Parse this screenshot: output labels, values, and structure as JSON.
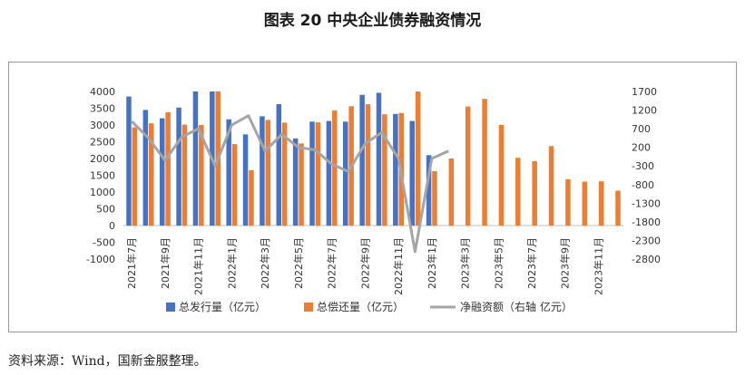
{
  "title": "图表 20  中央企业债券融资情况",
  "source": "资料来源：Wind，国新金服整理。",
  "colors": {
    "issue": "#4472C4",
    "repay": "#ED7D31",
    "net": "#A5A5A5"
  },
  "chart_data": {
    "type": "bar",
    "categories": [
      "2021年7月",
      "2021年8月",
      "2021年9月",
      "2021年10月",
      "2021年11月",
      "2021年12月",
      "2022年1月",
      "2022年2月",
      "2022年3月",
      "2022年4月",
      "2022年5月",
      "2022年6月",
      "2022年7月",
      "2022年8月",
      "2022年9月",
      "2022年10月",
      "2022年11月",
      "2022年12月",
      "2023年1月",
      "2023年2月",
      "2023年3月",
      "2023年4月",
      "2023年5月",
      "2023年6月",
      "2023年7月",
      "2023年8月",
      "2023年9月",
      "2023年10月",
      "2023年11月",
      "2023年12月"
    ],
    "x_tick_labels": [
      "2021年7月",
      "2021年9月",
      "2021年11月",
      "2022年1月",
      "2022年3月",
      "2022年5月",
      "2022年7月",
      "2022年9月",
      "2022年11月",
      "2023年1月",
      "2023年3月",
      "2023年5月",
      "2023年7月",
      "2023年9月",
      "2023年11月"
    ],
    "series": [
      {
        "name": "总发行量（亿元）",
        "axis": "left",
        "type": "bar",
        "values": [
          3850,
          3450,
          3200,
          3520,
          4000,
          4000,
          3170,
          2720,
          3260,
          3620,
          2600,
          3100,
          3120,
          3100,
          3900,
          3960,
          3330,
          3120,
          2100,
          null,
          null,
          null,
          null,
          null,
          null,
          null,
          null,
          null,
          null,
          null
        ]
      },
      {
        "name": "总偿还量（亿元）",
        "axis": "left",
        "type": "bar",
        "values": [
          2930,
          3050,
          3380,
          3010,
          3000,
          4000,
          2430,
          1650,
          3150,
          3070,
          2450,
          3080,
          3430,
          3560,
          3620,
          3320,
          3360,
          4000,
          1620,
          2000,
          3550,
          3780,
          3000,
          2020,
          1920,
          2370,
          1380,
          1310,
          1320,
          1040
        ]
      },
      {
        "name": "净融资额（右轴 亿元）",
        "axis": "right",
        "type": "line",
        "values": [
          900,
          450,
          -150,
          480,
          700,
          -300,
          800,
          1050,
          100,
          550,
          200,
          130,
          -250,
          -450,
          300,
          600,
          -100,
          -2600,
          -100,
          100,
          null,
          null,
          null,
          null,
          null,
          null,
          null,
          null,
          null,
          null
        ]
      }
    ],
    "y_left": {
      "lim": [
        -1000,
        4000
      ],
      "ticks": [
        4000,
        3500,
        3000,
        2500,
        2000,
        1500,
        1000,
        500,
        0,
        -500,
        -1000
      ]
    },
    "y_right": {
      "lim": [
        -2800,
        1700
      ],
      "ticks": [
        1700,
        1200,
        700,
        200,
        -300,
        -800,
        -1300,
        -1800,
        -2300,
        -2800
      ]
    },
    "legend_position": "bottom",
    "grid": false
  }
}
